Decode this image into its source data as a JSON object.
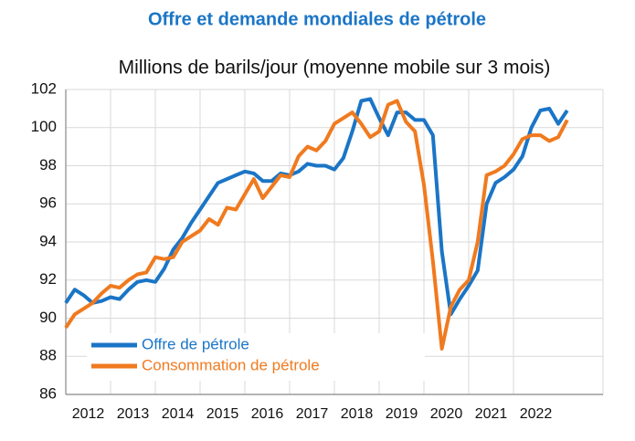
{
  "chart_data": {
    "type": "line",
    "title": "Offre et demande mondiales de pétrole",
    "subtitle": "Millions de barils/jour (moyenne mobile sur 3 mois)",
    "x": [
      2012.0,
      2012.2,
      2012.4,
      2012.6,
      2012.8,
      2013.0,
      2013.2,
      2013.4,
      2013.6,
      2013.8,
      2014.0,
      2014.2,
      2014.4,
      2014.6,
      2014.8,
      2015.0,
      2015.2,
      2015.4,
      2015.6,
      2015.8,
      2016.0,
      2016.2,
      2016.4,
      2016.6,
      2016.8,
      2017.0,
      2017.2,
      2017.4,
      2017.6,
      2017.8,
      2018.0,
      2018.2,
      2018.4,
      2018.6,
      2018.8,
      2019.0,
      2019.2,
      2019.4,
      2019.6,
      2019.8,
      2020.0,
      2020.2,
      2020.4,
      2020.6,
      2020.8,
      2021.0,
      2021.2,
      2021.4,
      2021.6,
      2021.8,
      2022.0,
      2022.2,
      2022.4,
      2022.6,
      2022.8,
      2023.0,
      2023.2
    ],
    "series": [
      {
        "name": "Offre de pétrole",
        "color": "#1b75c6",
        "values": [
          90.8,
          91.5,
          91.2,
          90.8,
          90.9,
          91.1,
          91.0,
          91.5,
          91.9,
          92.0,
          91.9,
          92.6,
          93.6,
          94.2,
          95.0,
          95.7,
          96.4,
          97.1,
          97.3,
          97.5,
          97.7,
          97.6,
          97.2,
          97.2,
          97.6,
          97.5,
          97.7,
          98.1,
          98.0,
          98.0,
          97.8,
          98.4,
          99.8,
          101.4,
          101.5,
          100.5,
          99.6,
          100.8,
          100.8,
          100.4,
          100.4,
          99.6,
          93.5,
          90.2,
          91.0,
          91.7,
          92.5,
          96.0,
          97.1,
          97.4,
          97.8,
          98.5,
          100.0,
          100.9,
          101.0,
          100.2,
          100.9
        ]
      },
      {
        "name": "Consommation de pétrole",
        "color": "#f07a1f",
        "values": [
          89.5,
          90.2,
          90.5,
          90.8,
          91.3,
          91.7,
          91.6,
          92.0,
          92.3,
          92.4,
          93.2,
          93.1,
          93.2,
          94.0,
          94.3,
          94.6,
          95.2,
          94.9,
          95.8,
          95.7,
          96.5,
          97.3,
          96.3,
          96.9,
          97.5,
          97.4,
          98.5,
          99.0,
          98.8,
          99.3,
          100.2,
          100.5,
          100.8,
          100.2,
          99.5,
          99.8,
          101.2,
          101.4,
          100.3,
          99.8,
          97.0,
          93.0,
          88.4,
          90.6,
          91.5,
          92.0,
          94.0,
          97.5,
          97.7,
          98.0,
          98.6,
          99.4,
          99.6,
          99.6,
          99.3,
          99.5,
          100.4
        ]
      }
    ],
    "xlim": [
      2012,
      2024
    ],
    "xticks": [
      2012,
      2013,
      2014,
      2015,
      2016,
      2017,
      2018,
      2019,
      2020,
      2021,
      2022
    ],
    "ylim": [
      86,
      102
    ],
    "yticks": [
      86,
      88,
      90,
      92,
      94,
      96,
      98,
      100,
      102
    ],
    "grid": true,
    "legend": "lower left"
  }
}
